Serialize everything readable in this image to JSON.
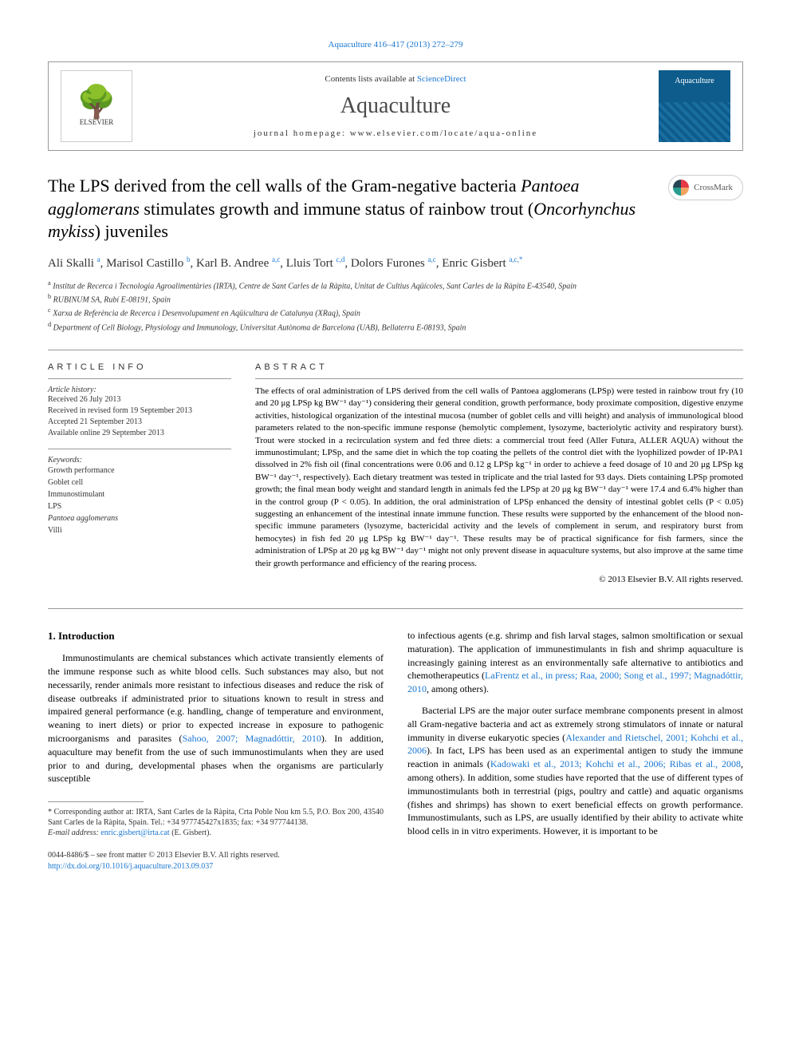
{
  "top_link": "Aquaculture 416–417 (2013) 272–279",
  "header": {
    "sciencedirect_prefix": "Contents lists available at ",
    "sciencedirect": "ScienceDirect",
    "journal_title": "Aquaculture",
    "homepage_prefix": "journal homepage: ",
    "homepage": "www.elsevier.com/locate/aqua-online",
    "elsevier_label": "ELSEVIER",
    "cover_label": "Aquaculture"
  },
  "crossmark": "CrossMark",
  "title_parts": {
    "t1": "The LPS derived from the cell walls of the Gram-negative bacteria ",
    "t2": "Pantoea agglomerans",
    "t3": " stimulates growth and immune status of rainbow trout (",
    "t4": "Oncorhynchus mykiss",
    "t5": ") juveniles"
  },
  "authors": {
    "a1": "Ali Skalli",
    "a1_aff": "a",
    "a2": "Marisol Castillo",
    "a2_aff": "b",
    "a3": "Karl B. Andree",
    "a3_aff": "a,c",
    "a4": "Lluis Tort",
    "a4_aff": "c,d",
    "a5": "Dolors Furones",
    "a5_aff": "a,c",
    "a6": "Enric Gisbert",
    "a6_aff": "a,c,",
    "a6_star": "*"
  },
  "affiliations": {
    "a": "Institut de Recerca i Tecnologia Agroalimentàries (IRTA), Centre de Sant Carles de la Ràpita, Unitat de Cultius Aqüícoles, Sant Carles de la Ràpita E-43540, Spain",
    "b": "RUBINUM SA, Rubí E-08191, Spain",
    "c": "Xarxa de Referència de Recerca i Desenvolupament en Aqüicultura de Catalunya (XRaq), Spain",
    "d": "Department of Cell Biology, Physiology and Immunology, Universitat Autònoma de Barcelona (UAB), Bellaterra E-08193, Spain"
  },
  "article_info": {
    "heading": "article info",
    "history_label": "Article history:",
    "history": {
      "received": "Received 26 July 2013",
      "revised": "Received in revised form 19 September 2013",
      "accepted": "Accepted 21 September 2013",
      "online": "Available online 29 September 2013"
    },
    "keywords_label": "Keywords:",
    "keywords": [
      "Growth performance",
      "Goblet cell",
      "Immunostimulant",
      "LPS",
      "Pantoea agglomerans",
      "Villi"
    ]
  },
  "abstract": {
    "heading": "abstract",
    "text": "The effects of oral administration of LPS derived from the cell walls of Pantoea agglomerans (LPSp) were tested in rainbow trout fry (10 and 20 μg LPSp kg BW⁻¹ day⁻¹) considering their general condition, growth performance, body proximate composition, digestive enzyme activities, histological organization of the intestinal mucosa (number of goblet cells and villi height) and analysis of immunological blood parameters related to the non-specific immune response (hemolytic complement, lysozyme, bacteriolytic activity and respiratory burst). Trout were stocked in a recirculation system and fed three diets: a commercial trout feed (Aller Futura, ALLER AQUA) without the immunostimulant; LPSp, and the same diet in which the top coating the pellets of the control diet with the lyophilized powder of IP-PA1 dissolved in 2% fish oil (final concentrations were 0.06 and 0.12 g LPSp kg⁻¹ in order to achieve a feed dosage of 10 and 20 μg LPSp kg BW⁻¹ day⁻¹, respectively). Each dietary treatment was tested in triplicate and the trial lasted for 93 days. Diets containing LPSp promoted growth; the final mean body weight and standard length in animals fed the LPSp at 20 μg kg BW⁻¹ day⁻¹ were 17.4 and 6.4% higher than in the control group (P < 0.05). In addition, the oral administration of LPSp enhanced the density of intestinal goblet cells (P < 0.05) suggesting an enhancement of the intestinal innate immune function. These results were supported by the enhancement of the blood non-specific immune parameters (lysozyme, bactericidal activity and the levels of complement in serum, and respiratory burst from hemocytes) in fish fed 20 μg LPSp kg BW⁻¹ day⁻¹. These results may be of practical significance for fish farmers, since the administration of LPSp at 20 μg kg BW⁻¹ day⁻¹ might not only prevent disease in aquaculture systems, but also improve at the same time their growth performance and efficiency of the rearing process.",
    "copyright": "© 2013 Elsevier B.V. All rights reserved."
  },
  "body": {
    "section1_heading": "1. Introduction",
    "col1_p1a": "Immunostimulants are chemical substances which activate transiently elements of the immune response such as white blood cells. Such substances may also, but not necessarily, render animals more resistant to infectious diseases and reduce the risk of disease outbreaks if administrated prior to situations known to result in stress and impaired general performance (e.g. handling, change of temperature and environment, weaning to inert diets) or prior to expected increase in exposure to pathogenic microorganisms and parasites (",
    "col1_p1_ref": "Sahoo, 2007; Magnadóttir, 2010",
    "col1_p1b": "). In addition, aquaculture may benefit from the use of such immunostimulants when they are used prior to and during, developmental phases when the organisms are particularly susceptible",
    "col2_p1a": "to infectious agents (e.g. shrimp and fish larval stages, salmon smoltification or sexual maturation). The application of immunestimulants in fish and shrimp aquaculture is increasingly gaining interest as an environmentally safe alternative to antibiotics and chemotherapeutics (",
    "col2_p1_ref": "LaFrentz et al., in press; Raa, 2000; Song et al., 1997; Magnadóttir, 2010",
    "col2_p1b": ", among others).",
    "col2_p2a": "Bacterial LPS are the major outer surface membrane components present in almost all Gram-negative bacteria and act as extremely strong stimulators of innate or natural immunity in diverse eukaryotic species (",
    "col2_p2_ref1": "Alexander and Rietschel, 2001; Kohchi et al., 2006",
    "col2_p2b": "). In fact, LPS has been used as an experimental antigen to study the immune reaction in animals (",
    "col2_p2_ref2": "Kadowaki et al., 2013; Kohchi et al., 2006; Ribas et al., 2008",
    "col2_p2c": ", among others). In addition, some studies have reported that the use of different types of immunostimulants both in terrestrial (pigs, poultry and cattle) and aquatic organisms (fishes and shrimps) has shown to exert beneficial effects on growth performance. Immunostimulants, such as LPS, are usually identified by their ability to activate white blood cells in in vitro experiments. However, it is important to be"
  },
  "footnote": {
    "corr": "* Corresponding author at: IRTA, Sant Carles de la Ràpita, Crta Poble Nou km 5.5, P.O. Box 200, 43540 Sant Carles de la Ràpita, Spain. Tel.: +34 977745427x1835; fax: +34 977744138.",
    "email_label": "E-mail address: ",
    "email": "enric.gisbert@irta.cat",
    "email_author": " (E. Gisbert)."
  },
  "bottom": {
    "issn": "0044-8486/$ – see front matter © 2013 Elsevier B.V. All rights reserved.",
    "doi": "http://dx.doi.org/10.1016/j.aquaculture.2013.09.037"
  },
  "colors": {
    "link": "#1976d2",
    "border": "#999999",
    "journal_bg": "#0d5c8c"
  }
}
